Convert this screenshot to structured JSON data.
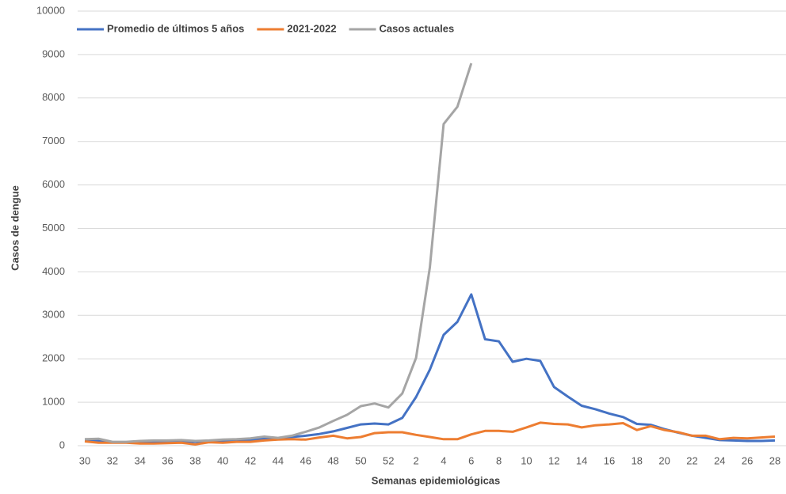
{
  "chart_data": {
    "type": "line",
    "y_label": "Casos de dengue",
    "x_label": "Semanas epidemiológicas",
    "categories": [
      "30",
      null,
      "32",
      null,
      "34",
      null,
      "36",
      null,
      "38",
      null,
      "40",
      null,
      "42",
      null,
      "44",
      null,
      "46",
      null,
      "48",
      null,
      "50",
      null,
      "52",
      null,
      "2",
      null,
      "4",
      null,
      "6",
      null,
      "8",
      null,
      "10",
      null,
      "12",
      null,
      "14",
      null,
      "16",
      null,
      "18",
      null,
      "20",
      null,
      "22",
      null,
      "24",
      null,
      "26",
      null,
      "28"
    ],
    "series": [
      {
        "name": "Promedio de últimos 5 años",
        "color": "#4472c4",
        "values": [
          120,
          110,
          80,
          80,
          80,
          90,
          90,
          100,
          90,
          100,
          110,
          120,
          130,
          160,
          170,
          200,
          230,
          270,
          330,
          410,
          490,
          510,
          490,
          640,
          1120,
          1750,
          2550,
          2850,
          3480,
          2450,
          2400,
          1930,
          2000,
          1950,
          1350,
          1130,
          920,
          840,
          740,
          660,
          500,
          480,
          380,
          300,
          230,
          180,
          130,
          120,
          110,
          110,
          120
        ]
      },
      {
        "name": "2021-2022",
        "color": "#ed7d31",
        "values": [
          100,
          70,
          70,
          70,
          50,
          50,
          60,
          70,
          30,
          80,
          70,
          90,
          90,
          120,
          140,
          150,
          140,
          190,
          230,
          170,
          200,
          290,
          310,
          310,
          250,
          200,
          150,
          150,
          260,
          340,
          340,
          320,
          420,
          530,
          500,
          490,
          420,
          470,
          490,
          520,
          360,
          450,
          360,
          310,
          230,
          230,
          150,
          180,
          170,
          190,
          210
        ]
      },
      {
        "name": "Casos actuales",
        "color": "#a5a5a5",
        "values": [
          150,
          160,
          90,
          90,
          110,
          120,
          120,
          130,
          110,
          120,
          140,
          150,
          170,
          210,
          180,
          230,
          320,
          420,
          570,
          710,
          910,
          970,
          880,
          1200,
          2020,
          4100,
          7400,
          7800,
          8800,
          null,
          null,
          null,
          null,
          null,
          null,
          null,
          null,
          null,
          null,
          null,
          null,
          null,
          null,
          null,
          null,
          null,
          null,
          null,
          null,
          null,
          null
        ]
      }
    ],
    "ylim": [
      0,
      10000
    ],
    "yticks": [
      0,
      1000,
      2000,
      3000,
      4000,
      5000,
      6000,
      7000,
      8000,
      9000,
      10000
    ],
    "grid": true
  }
}
